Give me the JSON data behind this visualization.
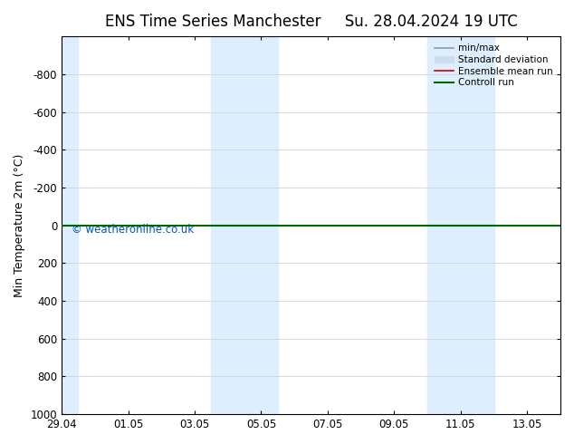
{
  "title_left": "ENS Time Series Manchester",
  "title_right": "Su. 28.04.2024 19 UTC",
  "ylabel": "Min Temperature 2m (°C)",
  "ylim_bottom": 1000,
  "ylim_top": -1000,
  "yticks": [
    -800,
    -600,
    -400,
    -200,
    0,
    200,
    400,
    600,
    800,
    1000
  ],
  "xtick_labels": [
    "29.04",
    "01.05",
    "03.05",
    "05.05",
    "07.05",
    "09.05",
    "11.05",
    "13.05"
  ],
  "xtick_positions": [
    0,
    2,
    4,
    6,
    8,
    10,
    12,
    14
  ],
  "xlim": [
    0,
    15
  ],
  "shaded_bands": [
    {
      "x_start": 0,
      "x_end": 0.5,
      "color": "#ddeeff"
    },
    {
      "x_start": 4.5,
      "x_end": 6.5,
      "color": "#ddeeff"
    },
    {
      "x_start": 11.0,
      "x_end": 13.0,
      "color": "#ddeeff"
    }
  ],
  "green_line_y": 0,
  "red_line_y": 0,
  "watermark": "© weatheronline.co.uk",
  "watermark_color": "#0055cc",
  "legend_items": [
    {
      "label": "min/max",
      "color": "#999999",
      "lw": 1.2,
      "type": "line"
    },
    {
      "label": "Standard deviation",
      "color": "#ccddee",
      "lw": 8,
      "type": "box"
    },
    {
      "label": "Ensemble mean run",
      "color": "#cc0000",
      "lw": 1.2,
      "type": "line"
    },
    {
      "label": "Controll run",
      "color": "#006600",
      "lw": 1.5,
      "type": "line"
    }
  ],
  "bg_color": "#ffffff",
  "plot_bg_color": "#ffffff",
  "grid_color": "#cccccc",
  "axis_color": "#000000",
  "title_fontsize": 12,
  "label_fontsize": 9,
  "tick_fontsize": 8.5
}
